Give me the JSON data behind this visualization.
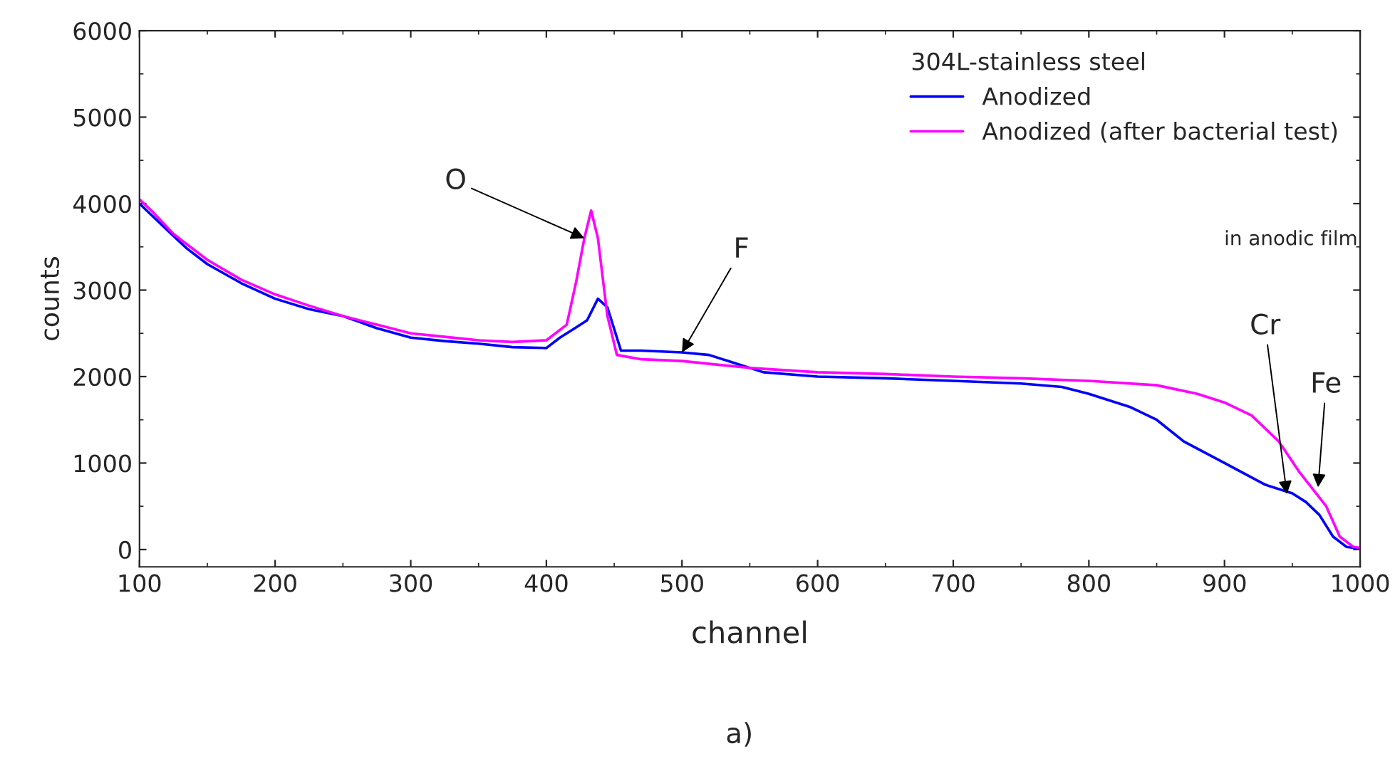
{
  "chart_data": {
    "type": "line",
    "xlabel": "channel",
    "ylabel": "counts",
    "legend_title": "304L-stainless steel",
    "legend": "top right",
    "grid": false,
    "xlim": [
      100,
      1000
    ],
    "xticks": [
      100,
      200,
      300,
      400,
      500,
      600,
      700,
      800,
      900,
      1000
    ],
    "ylim": [
      -200,
      6000
    ],
    "yticks": [
      0,
      1000,
      2000,
      3000,
      4000,
      5000,
      6000
    ],
    "series": [
      {
        "name": "Anodized",
        "color": "#0000ff",
        "x": [
          100,
          110,
          120,
          135,
          150,
          175,
          200,
          225,
          250,
          275,
          300,
          325,
          350,
          375,
          400,
          410,
          420,
          430,
          438,
          445,
          455,
          470,
          500,
          520,
          540,
          560,
          600,
          650,
          700,
          750,
          780,
          800,
          830,
          850,
          870,
          900,
          930,
          950,
          960,
          970,
          980,
          990,
          1000
        ],
        "values": [
          4000,
          3850,
          3700,
          3480,
          3300,
          3080,
          2900,
          2780,
          2700,
          2560,
          2450,
          2410,
          2380,
          2340,
          2330,
          2450,
          2550,
          2650,
          2900,
          2800,
          2300,
          2300,
          2280,
          2250,
          2150,
          2050,
          2000,
          1980,
          1950,
          1920,
          1880,
          1800,
          1650,
          1500,
          1250,
          1000,
          750,
          650,
          550,
          400,
          150,
          30,
          10
        ]
      },
      {
        "name": "Anodized (after bacterial test)",
        "color": "#ff00ff",
        "x": [
          100,
          110,
          125,
          150,
          175,
          200,
          225,
          250,
          275,
          300,
          325,
          350,
          375,
          400,
          415,
          422,
          428,
          433,
          438,
          445,
          452,
          470,
          500,
          550,
          600,
          650,
          700,
          750,
          800,
          850,
          880,
          900,
          920,
          940,
          955,
          965,
          975,
          985,
          995,
          1000
        ],
        "values": [
          4050,
          3900,
          3650,
          3350,
          3120,
          2950,
          2820,
          2700,
          2600,
          2500,
          2460,
          2420,
          2400,
          2420,
          2600,
          3100,
          3600,
          3920,
          3600,
          2700,
          2250,
          2200,
          2180,
          2100,
          2050,
          2030,
          2000,
          1980,
          1950,
          1900,
          1800,
          1700,
          1550,
          1250,
          900,
          700,
          500,
          150,
          30,
          20
        ]
      }
    ],
    "annotations": [
      {
        "text": "O",
        "x": 428,
        "y": 3600
      },
      {
        "text": "F",
        "x": 500,
        "y": 2280
      },
      {
        "text": "Cr",
        "x": 946,
        "y": 640
      },
      {
        "text": "Fe",
        "x": 969,
        "y": 720
      },
      "in anodic film",
      "a)"
    ]
  }
}
